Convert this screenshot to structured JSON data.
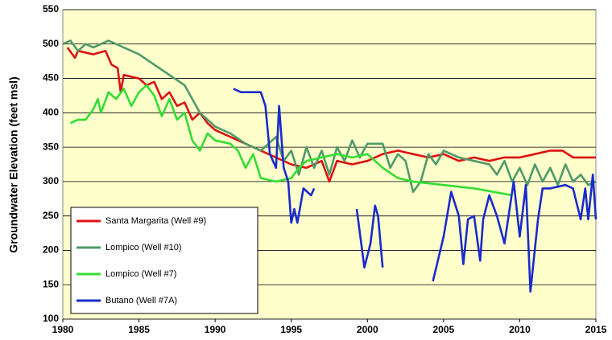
{
  "chart_data": {
    "type": "line",
    "ylabel": "Groundwater Elevation (feet msl)",
    "xlim": [
      1980,
      2015
    ],
    "xticks": [
      1980,
      1985,
      1990,
      1995,
      2000,
      2005,
      2010,
      2015
    ],
    "ylim": [
      100,
      550
    ],
    "yticks": [
      100,
      150,
      200,
      250,
      300,
      350,
      400,
      450,
      500,
      550
    ],
    "grid": true,
    "legend": "lower left",
    "background": "#ffffcc",
    "series": [
      {
        "name": "Santa Margarita (Well #9)",
        "color": "#dd1111",
        "x": [
          1980.3,
          1980.8,
          1981,
          1982,
          1982.8,
          1983.2,
          1983.6,
          1983.8,
          1984,
          1985,
          1985.5,
          1986,
          1986.5,
          1987,
          1987.5,
          1988,
          1988.5,
          1989,
          1989.5,
          1990,
          1991,
          1992,
          1993,
          1994,
          1995,
          1996,
          1997,
          1997.5,
          1998,
          1999,
          2000,
          2001,
          2002,
          2003,
          2004,
          2005,
          2006,
          2007,
          2008,
          2009,
          2010,
          2011,
          2012,
          2012.8,
          2013.5,
          2014,
          2015
        ],
        "values": [
          495,
          480,
          490,
          485,
          490,
          470,
          465,
          430,
          455,
          450,
          440,
          445,
          420,
          430,
          410,
          415,
          390,
          400,
          385,
          375,
          365,
          355,
          345,
          335,
          325,
          320,
          330,
          300,
          330,
          325,
          330,
          340,
          345,
          340,
          335,
          340,
          330,
          335,
          330,
          335,
          335,
          340,
          345,
          345,
          335,
          335,
          335
        ]
      },
      {
        "name": "Lompico (Well #10)",
        "color": "#4e9a6a",
        "x": [
          1980,
          1980.5,
          1981,
          1981.5,
          1982,
          1983,
          1984,
          1985,
          1986,
          1987,
          1988,
          1988.5,
          1989,
          1990,
          1991,
          1992,
          1993,
          1994,
          1994.5,
          1995,
          1995.5,
          1996,
          1996.5,
          1997,
          1997.5,
          1998,
          1998.5,
          1999,
          1999.5,
          2000,
          2001,
          2001.5,
          2002,
          2002.5,
          2003,
          2003.5,
          2004,
          2004.5,
          2005,
          2006,
          2007,
          2008,
          2008.5,
          2009,
          2009.5,
          2010,
          2010.5,
          2011,
          2011.5,
          2012,
          2012.5,
          2013,
          2013.5,
          2014,
          2014.5,
          2015
        ],
        "values": [
          500,
          505,
          490,
          500,
          495,
          505,
          495,
          485,
          470,
          455,
          440,
          420,
          400,
          380,
          370,
          355,
          345,
          365,
          330,
          345,
          310,
          350,
          320,
          345,
          310,
          350,
          330,
          360,
          335,
          355,
          355,
          320,
          340,
          330,
          285,
          300,
          340,
          325,
          345,
          335,
          330,
          325,
          310,
          330,
          300,
          320,
          295,
          325,
          300,
          320,
          295,
          325,
          300,
          310,
          295,
          300
        ]
      },
      {
        "name": "Lompico (Well #7)",
        "color": "#33dd33",
        "x": [
          1980.5,
          1981,
          1981.5,
          1982,
          1982.3,
          1982.5,
          1983,
          1983.5,
          1984,
          1984.5,
          1985,
          1985.5,
          1986,
          1986.5,
          1987,
          1987.5,
          1988,
          1988.5,
          1989,
          1989.5,
          1990,
          1991,
          1991.5,
          1992,
          1992.5,
          1993,
          1994,
          1995,
          1995.5,
          1996,
          1997,
          1998,
          1999,
          2000,
          2001,
          2002,
          2003,
          2005,
          2007,
          2009.5
        ],
        "values": [
          385,
          390,
          390,
          405,
          420,
          400,
          430,
          420,
          435,
          410,
          430,
          440,
          425,
          395,
          420,
          390,
          400,
          360,
          345,
          370,
          360,
          355,
          345,
          320,
          340,
          305,
          300,
          305,
          320,
          330,
          335,
          340,
          335,
          340,
          320,
          305,
          300,
          295,
          290,
          280
        ]
      },
      {
        "name": "Butano (Well #7A)",
        "color": "#1a2acc",
        "x": [
          1991.2,
          1991.7,
          1992.3,
          1993,
          1993.3,
          1993.6,
          1994,
          1994.2,
          1994.5,
          1994.8,
          1995,
          1995.2,
          1995.4,
          1995.8,
          1996.3,
          1996.5,
          1998,
          1999.3,
          1999.8,
          2000.2,
          2000.5,
          2000.7,
          2001,
          2002.5,
          2004.3,
          2005,
          2005.5,
          2006,
          2006.3,
          2006.6,
          2007,
          2007.4,
          2007.6,
          2008,
          2008.5,
          2009,
          2009.6,
          2010,
          2010.4,
          2010.7,
          2011.2,
          2011.5,
          2012,
          2013,
          2013.5,
          2014,
          2014.3,
          2014.5,
          2014.8,
          2015
        ],
        "values": [
          435,
          430,
          430,
          430,
          410,
          340,
          320,
          410,
          320,
          300,
          240,
          260,
          240,
          290,
          280,
          290,
          null,
          260,
          175,
          210,
          265,
          250,
          175,
          null,
          155,
          220,
          285,
          250,
          180,
          245,
          250,
          185,
          245,
          280,
          250,
          210,
          300,
          220,
          295,
          140,
          245,
          290,
          290,
          295,
          290,
          245,
          290,
          245,
          310,
          245
        ]
      }
    ]
  }
}
